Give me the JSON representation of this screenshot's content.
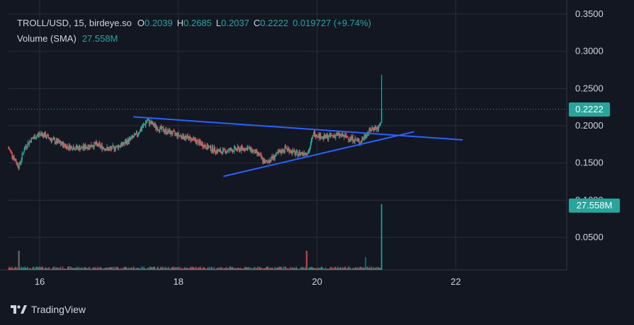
{
  "legend": {
    "symbol": "TROLL/USD, 15, birdeye.so",
    "o_key": "O",
    "o_val": "0.2039",
    "h_key": "H",
    "h_val": "0.2685",
    "l_key": "L",
    "l_val": "0.2037",
    "c_key": "C",
    "c_val": "0.2222",
    "change": "0.019727 (+9.74%)",
    "volume_label": "Volume (SMA)",
    "volume_val": "27.558M"
  },
  "badges": {
    "last_price": "0.2222",
    "last_volume": "27.558M"
  },
  "brand": {
    "name": "TradingView"
  },
  "colors": {
    "background": "#131722",
    "up": "#26a69a",
    "down": "#ef5350",
    "trendline": "#2962ff",
    "grid": "#2a2e39",
    "text": "#d1d4dc"
  },
  "chart_data": {
    "type": "candlestick",
    "x_ticks": [
      "16",
      "18",
      "20",
      "22"
    ],
    "y_ticks": [
      "0.0500",
      "0.1000",
      "0.1500",
      "0.2000",
      "0.2500",
      "0.3000",
      "0.3500"
    ],
    "ylim": [
      0.0,
      0.36
    ],
    "xlim": [
      15.55,
      23.6
    ],
    "last_price": 0.2222,
    "price_path": [
      [
        15.55,
        0.17
      ],
      [
        15.7,
        0.145
      ],
      [
        15.78,
        0.17
      ],
      [
        15.88,
        0.182
      ],
      [
        16.02,
        0.19
      ],
      [
        16.2,
        0.18
      ],
      [
        16.4,
        0.172
      ],
      [
        16.6,
        0.17
      ],
      [
        16.8,
        0.175
      ],
      [
        17.0,
        0.168
      ],
      [
        17.2,
        0.175
      ],
      [
        17.4,
        0.188
      ],
      [
        17.55,
        0.207
      ],
      [
        17.7,
        0.197
      ],
      [
        17.85,
        0.192
      ],
      [
        18.05,
        0.186
      ],
      [
        18.2,
        0.182
      ],
      [
        18.4,
        0.172
      ],
      [
        18.6,
        0.165
      ],
      [
        18.8,
        0.168
      ],
      [
        19.0,
        0.17
      ],
      [
        19.15,
        0.162
      ],
      [
        19.25,
        0.15
      ],
      [
        19.4,
        0.16
      ],
      [
        19.55,
        0.17
      ],
      [
        19.7,
        0.162
      ],
      [
        19.88,
        0.165
      ],
      [
        19.95,
        0.19
      ],
      [
        20.1,
        0.184
      ],
      [
        20.3,
        0.188
      ],
      [
        20.5,
        0.183
      ],
      [
        20.62,
        0.178
      ],
      [
        20.72,
        0.19
      ],
      [
        20.82,
        0.198
      ],
      [
        20.88,
        0.195
      ],
      [
        20.92,
        0.204
      ]
    ],
    "trendlines": [
      {
        "name": "upper",
        "x": [
          17.35,
          22.1
        ],
        "y": [
          0.212,
          0.181
        ]
      },
      {
        "name": "lower",
        "x": [
          18.65,
          21.4
        ],
        "y": [
          0.132,
          0.192
        ]
      }
    ],
    "volume": {
      "spikes": [
        [
          15.7,
          0.6
        ],
        [
          19.85,
          0.6
        ],
        [
          20.7,
          0.4
        ],
        [
          20.93,
          2.1
        ]
      ]
    }
  }
}
